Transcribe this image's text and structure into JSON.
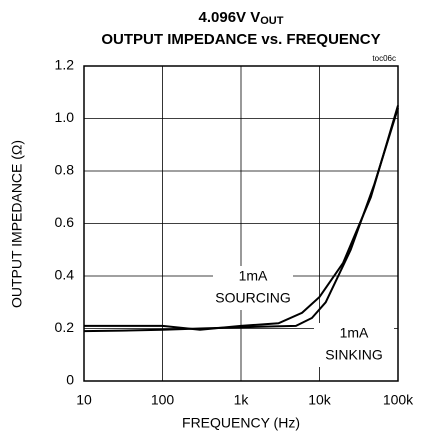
{
  "chart_data": {
    "type": "line",
    "title": "4.096V V",
    "title_subscript": "OUT",
    "subtitle": "OUTPUT IMPEDANCE vs. FREQUENCY",
    "figure_id": "toc06c",
    "x_label": "FREQUENCY (Hz)",
    "y_label": "OUTPUT IMPEDANCE (Ω)",
    "xscale": "log",
    "xlim": [
      10,
      100000
    ],
    "xticks": [
      {
        "value": 10,
        "label": "10"
      },
      {
        "value": 100,
        "label": "100"
      },
      {
        "value": 1000,
        "label": "1k"
      },
      {
        "value": 10000,
        "label": "10k"
      },
      {
        "value": 100000,
        "label": "100k"
      }
    ],
    "ylim": [
      0,
      1.2
    ],
    "yticks": [
      0,
      0.2,
      0.4,
      0.6,
      0.8,
      {
        "value": 1,
        "label": "1.0"
      },
      1.2
    ],
    "grid": true,
    "series": [
      {
        "name": "1mA SOURCING",
        "color": "#000000",
        "x": [
          10,
          30,
          100,
          300,
          1000,
          3000,
          6000,
          10000,
          20000,
          45000,
          100000
        ],
        "values": [
          0.21,
          0.21,
          0.21,
          0.195,
          0.21,
          0.22,
          0.26,
          0.32,
          0.45,
          0.7,
          1.05
        ]
      },
      {
        "name": "1mA SINKING",
        "color": "#000000",
        "x": [
          10,
          30,
          100,
          300,
          1000,
          5000,
          8000,
          12000,
          25000,
          50000,
          100000
        ],
        "values": [
          0.19,
          0.192,
          0.195,
          0.2,
          0.205,
          0.21,
          0.24,
          0.3,
          0.5,
          0.75,
          1.04
        ]
      }
    ],
    "annotations": [
      {
        "lines": [
          "1mA",
          "SOURCING"
        ]
      },
      {
        "lines": [
          "1mA",
          "SINKING"
        ]
      }
    ]
  }
}
